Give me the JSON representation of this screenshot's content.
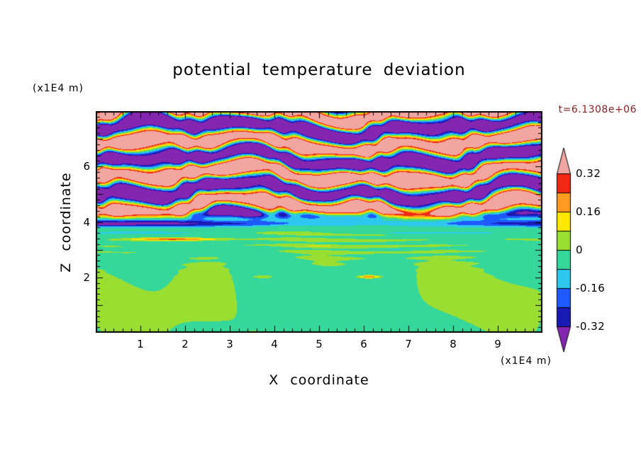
{
  "chart_data": {
    "type": "heatmap",
    "title": "potential temperature deviation",
    "time_label": "t=6.1308e+06",
    "time_color": "#8b2323",
    "xlabel": "X coordinate",
    "ylabel": "Z coordinate",
    "x_unit": "(x1E4 m)",
    "z_unit": "(x1E4 m)",
    "xlim": [
      0,
      10
    ],
    "zlim": [
      0,
      8
    ],
    "x_ticks": [
      1,
      2,
      3,
      4,
      5,
      6,
      7,
      8,
      9
    ],
    "z_ticks": [
      2,
      4,
      6
    ],
    "minor_tick_interval": 0.2,
    "grid": false,
    "legend_position": "right",
    "contour_levels": [
      -0.32,
      -0.24,
      -0.16,
      -0.08,
      0,
      0.08,
      0.16,
      0.24,
      0.32
    ],
    "colorbar_labels": [
      "0.32",
      "0.16",
      "0",
      "-0.16",
      "-0.32"
    ],
    "colors": {
      "below_min": "#8426b0",
      "cells": [
        "#1a1ab4",
        "#1e5aff",
        "#2ec8ee",
        "#35d79b",
        "#9ade32",
        "#ffe800",
        "#ff9b20",
        "#f02814"
      ],
      "above_max": "#f2a6a2",
      "frame": "#000000"
    },
    "structure": {
      "description": "Stably-stratified turbulent region above z≈4.3e4 m made of alternating saturated warm (>0.32) and cold (<-0.32) wavy horizontal bands with thin rainbow transition filaments; a strong cold (blue/navy) inversion band near z≈4.0e4 m; weak deviations (-0.08..0.08) below: spring-green background with chartreuse plumes under z≈2.6e4 m and thin horizontal striations between z≈2.6-3.7e4 m",
      "upper_amplitude": 0.6,
      "upper_base_z": 4.25,
      "band_wavelength_z": 1.15,
      "blend_z": 4.22,
      "inversion_z": 3.95,
      "inversion_strength": -0.34,
      "lower_background": -0.03,
      "blob_amplitude": 0.08,
      "stripe_center_z": 3.15,
      "stripe_amplitude": 0.06
    }
  }
}
